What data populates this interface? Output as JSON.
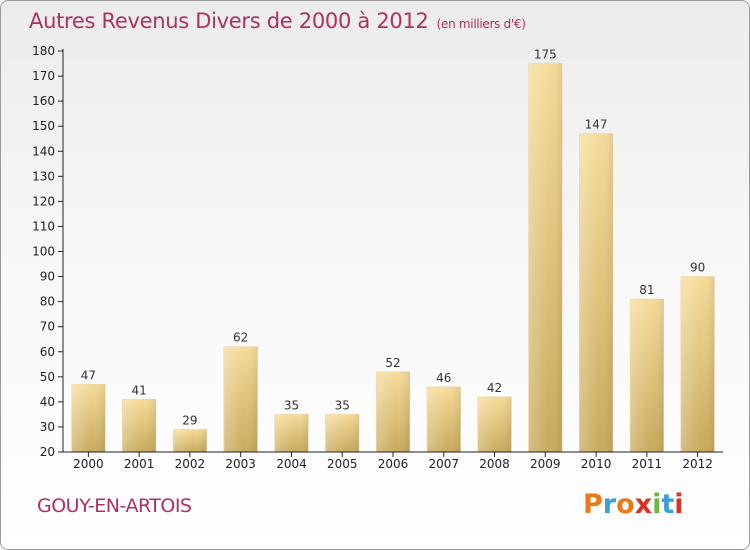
{
  "title": "Autres Revenus Divers de 2000 à 2012",
  "subtitle": "(en milliers d'€)",
  "commune": "GOUY-EN-ARTOIS",
  "logo": {
    "letters": [
      "P",
      "r",
      "o",
      "x",
      "i",
      "t",
      "i"
    ],
    "colors": [
      "#e87a1a",
      "#3aa0d8",
      "#e87a1a",
      "#d8302a",
      "#6cb83a",
      "#3aa0d8",
      "#d8302a"
    ]
  },
  "colors": {
    "title": "#b03060",
    "bar_light": "#f6dc9a",
    "bar_dark": "#c9ad62",
    "axis": "#222222"
  },
  "chart_data": {
    "type": "bar",
    "title": "Autres Revenus Divers de 2000 à 2012",
    "subtitle": "(en milliers d'€)",
    "categories": [
      "2000",
      "2001",
      "2002",
      "2003",
      "2004",
      "2005",
      "2006",
      "2007",
      "2008",
      "2009",
      "2010",
      "2011",
      "2012"
    ],
    "values": [
      47,
      41,
      29,
      62,
      35,
      35,
      52,
      46,
      42,
      175,
      147,
      81,
      90
    ],
    "ylim": [
      20,
      180
    ],
    "yticks": [
      20,
      30,
      40,
      50,
      60,
      70,
      80,
      90,
      100,
      110,
      120,
      130,
      140,
      150,
      160,
      170,
      180
    ],
    "grid": false,
    "data_labels": true
  }
}
